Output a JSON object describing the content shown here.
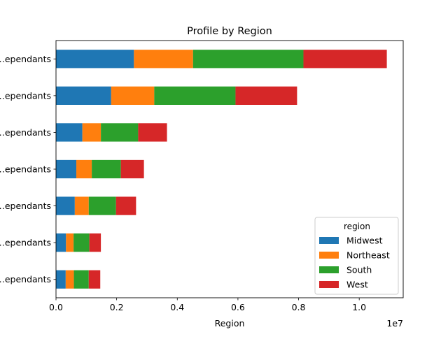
{
  "chart_data": {
    "type": "bar",
    "orientation": "horizontal",
    "stacked": true,
    "title": "Profile by Region",
    "xlabel": "Region",
    "ylabel": "",
    "xlim": [
      0,
      11450000
    ],
    "x_scale_label": "1e7",
    "x_ticks": [
      0,
      2000000,
      4000000,
      6000000,
      8000000,
      10000000
    ],
    "x_tick_labels": [
      "0.0",
      "0.2",
      "0.4",
      "0.6",
      "0.8",
      "1.0"
    ],
    "categories": [
      "…ependants",
      "…ependants",
      "…ependants",
      "…ependants",
      "…ependants",
      "…ependants",
      "…ependants"
    ],
    "series": [
      {
        "name": "Midwest",
        "color": "#1f77b4",
        "values": [
          2570000,
          1820000,
          870000,
          670000,
          620000,
          330000,
          320000
        ]
      },
      {
        "name": "Northeast",
        "color": "#ff7f0e",
        "values": [
          1950000,
          1420000,
          610000,
          510000,
          460000,
          250000,
          270000
        ]
      },
      {
        "name": "South",
        "color": "#2ca02c",
        "values": [
          3640000,
          2680000,
          1230000,
          960000,
          900000,
          520000,
          490000
        ]
      },
      {
        "name": "West",
        "color": "#d62728",
        "values": [
          2750000,
          2030000,
          950000,
          760000,
          660000,
          380000,
          380000
        ]
      }
    ],
    "legend": {
      "title": "region",
      "position": "lower-right"
    },
    "grid": false
  }
}
